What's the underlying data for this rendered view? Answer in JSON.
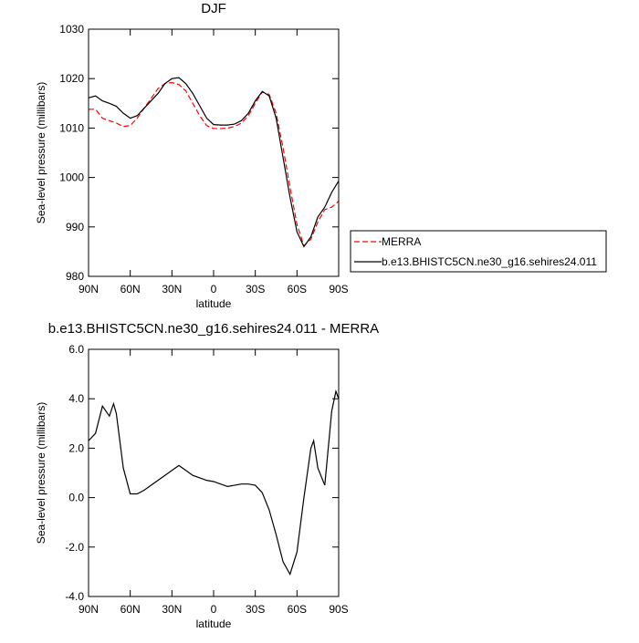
{
  "chart_data": [
    {
      "type": "line",
      "title": "DJF",
      "xlabel": "latitude",
      "ylabel": "Sea-level pressure (millibars)",
      "x": [
        90,
        85,
        80,
        75,
        70,
        65,
        60,
        55,
        50,
        45,
        40,
        35,
        30,
        25,
        20,
        15,
        10,
        5,
        0,
        -5,
        -10,
        -15,
        -20,
        -25,
        -30,
        -35,
        -40,
        -45,
        -50,
        -55,
        -60,
        -65,
        -70,
        -75,
        -80,
        -85,
        -90
      ],
      "series": [
        {
          "name": "MERRA",
          "color": "#ff0000",
          "line_style": "dashed",
          "values": [
            1013.8,
            1013.8,
            1012,
            1011.5,
            1011,
            1010.3,
            1010.5,
            1012,
            1014,
            1016,
            1018,
            1019,
            1019.2,
            1018.8,
            1017.5,
            1015,
            1012.5,
            1010.5,
            1009.9,
            1009.9,
            1010,
            1010.3,
            1011,
            1012.5,
            1015,
            1017.3,
            1016.8,
            1013,
            1006,
            998,
            990.5,
            986.2,
            987.5,
            991,
            993.5,
            994,
            995.2
          ]
        },
        {
          "name": "b.e13.BHISTC5CN.ne30_g16.sehires24.011",
          "color": "#000000",
          "line_style": "solid",
          "values": [
            1016.1,
            1016.5,
            1015.5,
            1015,
            1014.4,
            1013,
            1012,
            1012.5,
            1014,
            1015.5,
            1017,
            1019,
            1020,
            1020.2,
            1019,
            1017,
            1014.5,
            1012,
            1010.7,
            1010.6,
            1010.6,
            1010.8,
            1011.5,
            1013,
            1015.5,
            1017.4,
            1016.5,
            1012,
            1004,
            996,
            989,
            986,
            988,
            992,
            994,
            997,
            999.3
          ]
        }
      ],
      "xlim": [
        90,
        -90
      ],
      "xticks": [
        {
          "value": 90,
          "label": "90N"
        },
        {
          "value": 60,
          "label": "60N"
        },
        {
          "value": 30,
          "label": "30N"
        },
        0,
        {
          "value": -30,
          "label": "30S"
        },
        {
          "value": -60,
          "label": "60S"
        },
        {
          "value": -90,
          "label": "90S"
        }
      ],
      "ylim": [
        980,
        1030
      ],
      "yticks": [
        980,
        990,
        1000,
        1010,
        1020,
        1030
      ],
      "legend": "outside-right"
    },
    {
      "type": "line",
      "title": "b.e13.BHISTC5CN.ne30_g16.sehires24.011 - MERRA",
      "xlabel": "latitude",
      "ylabel": "Sea-level pressure (millibars)",
      "x": [
        90,
        85,
        80,
        75,
        72,
        70,
        65,
        60,
        55,
        50,
        45,
        40,
        35,
        30,
        25,
        20,
        15,
        10,
        5,
        0,
        -5,
        -10,
        -15,
        -20,
        -25,
        -30,
        -35,
        -40,
        -45,
        -50,
        -55,
        -60,
        -65,
        -70,
        -72,
        -75,
        -80,
        -85,
        -88,
        -90
      ],
      "series": [
        {
          "name": "b.e13.BHISTC5CN.ne30_g16.sehires24.011 - MERRA",
          "color": "#000000",
          "line_style": "solid",
          "values": [
            2.3,
            2.6,
            3.7,
            3.3,
            3.8,
            3.4,
            1.2,
            0.15,
            0.15,
            0.3,
            0.5,
            0.7,
            0.9,
            1.1,
            1.3,
            1.1,
            0.9,
            0.8,
            0.7,
            0.65,
            0.55,
            0.45,
            0.5,
            0.55,
            0.55,
            0.5,
            0.2,
            -0.5,
            -1.5,
            -2.6,
            -3.1,
            -2.2,
            0.0,
            2.0,
            2.3,
            1.2,
            0.5,
            3.5,
            4.3,
            4.0
          ]
        }
      ],
      "xlim": [
        90,
        -90
      ],
      "xticks": [
        {
          "value": 90,
          "label": "90N"
        },
        {
          "value": 60,
          "label": "60N"
        },
        {
          "value": 30,
          "label": "30N"
        },
        0,
        {
          "value": -30,
          "label": "30S"
        },
        {
          "value": -60,
          "label": "60S"
        },
        {
          "value": -90,
          "label": "90S"
        }
      ],
      "ylim": [
        -4,
        6
      ],
      "yticks": [
        {
          "value": -4,
          "label": "-4.0"
        },
        {
          "value": -2,
          "label": "-2.0"
        },
        {
          "value": 0,
          "label": "0.0"
        },
        {
          "value": 2,
          "label": "2.0"
        },
        {
          "value": 4,
          "label": "4.0"
        },
        {
          "value": 6,
          "label": "6.0"
        }
      ]
    }
  ]
}
